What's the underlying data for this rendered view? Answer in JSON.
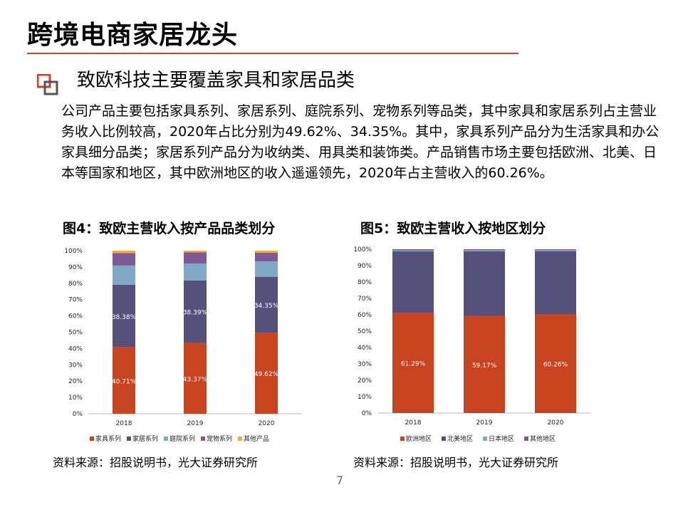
{
  "header": {
    "title": "跨境电商家居龙头",
    "accent_color": "#c8441f"
  },
  "section": {
    "bullet_icon": "square-bullet-icon",
    "subtitle": "致欧科技主要覆盖家具和家居品类",
    "paragraph": "公司产品主要包括家具系列、家居系列、庭院系列、宠物系列等品类，其中家具和家居系列占主营业务收入比例较高，2020年占比分别为49.62%、34.35%。其中，家具系列产品分为生活家具和办公家具细分品类；家居系列产品分为收纳类、用具类和装饰类。产品销售市场主要包括欧洲、北美、日本等国家和地区，其中欧洲地区的收入遥遥领先，2020年占主营收入的60.26%。"
  },
  "figure4": {
    "title": "图4：致欧主营收入按产品品类划分",
    "source": "资料来源：招股说明书，光大证券研究所"
  },
  "figure5": {
    "title": "图5：致欧主营收入按地区划分",
    "source": "资料来源：招股说明书，光大证券研究所"
  },
  "page_number": "7",
  "chart_data": [
    {
      "type": "bar",
      "stacked": true,
      "categories": [
        "2018",
        "2019",
        "2020"
      ],
      "ylim": [
        0,
        100
      ],
      "yticks": [
        "0%",
        "10%",
        "20%",
        "30%",
        "40%",
        "50%",
        "60%",
        "70%",
        "80%",
        "90%",
        "100%"
      ],
      "legend_position": "bottom",
      "series": [
        {
          "name": "家具系列",
          "color": "#c8441f",
          "values": [
            40.71,
            43.37,
            49.62
          ],
          "labels": [
            "40.71%",
            "43.37%",
            "49.62%"
          ]
        },
        {
          "name": "家居系列",
          "color": "#545079",
          "values": [
            38.38,
            38.39,
            34.35
          ],
          "labels": [
            "38.38%",
            "38.39%",
            "34.35%"
          ]
        },
        {
          "name": "庭院系列",
          "color": "#7fa9c7",
          "values": [
            11.8,
            10.3,
            9.5
          ],
          "labels": [
            "",
            "",
            ""
          ]
        },
        {
          "name": "宠物系列",
          "color": "#7e5a94",
          "values": [
            7.6,
            6.9,
            5.3
          ],
          "labels": [
            "",
            "",
            ""
          ]
        },
        {
          "name": "其他产品",
          "color": "#f2a93b",
          "values": [
            1.5,
            1.0,
            1.2
          ],
          "labels": [
            "",
            "",
            ""
          ]
        }
      ]
    },
    {
      "type": "bar",
      "stacked": true,
      "categories": [
        "2018",
        "2019",
        "2020"
      ],
      "ylim": [
        0,
        100
      ],
      "yticks": [
        "0%",
        "10%",
        "20%",
        "30%",
        "40%",
        "50%",
        "60%",
        "70%",
        "80%",
        "90%",
        "100%"
      ],
      "legend_position": "bottom",
      "series": [
        {
          "name": "欧洲地区",
          "color": "#c8441f",
          "values": [
            61.29,
            59.17,
            60.26
          ],
          "labels": [
            "61.29%",
            "59.17%",
            "60.26%"
          ]
        },
        {
          "name": "北美地区",
          "color": "#545079",
          "values": [
            37.4,
            39.6,
            38.6
          ],
          "labels": [
            "",
            "",
            ""
          ]
        },
        {
          "name": "日本地区",
          "color": "#7fa9c7",
          "values": [
            0.6,
            0.6,
            0.6
          ],
          "labels": [
            "",
            "",
            ""
          ]
        },
        {
          "name": "其他地区",
          "color": "#7e5a94",
          "values": [
            0.71,
            0.63,
            0.54
          ],
          "labels": [
            "",
            "",
            ""
          ]
        }
      ]
    }
  ]
}
